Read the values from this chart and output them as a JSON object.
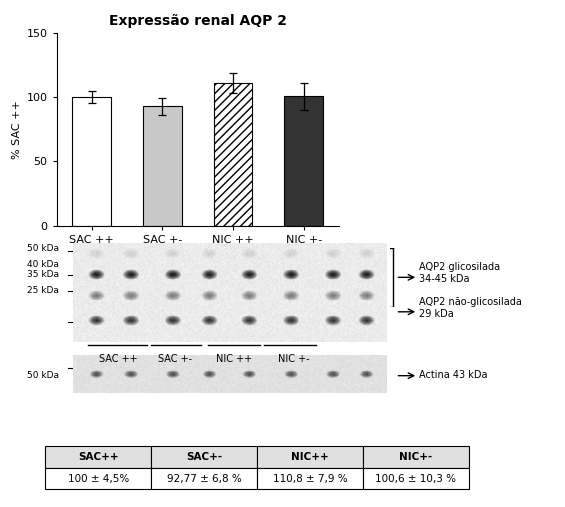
{
  "title": "Expressão renal AQP 2",
  "bar_labels": [
    "SAC ++",
    "SAC +-",
    "NIC ++",
    "NIC +-"
  ],
  "bar_values": [
    100,
    92.77,
    110.8,
    100.6
  ],
  "bar_errors": [
    4.5,
    6.8,
    7.9,
    10.3
  ],
  "bar_colors": [
    "white",
    "#c8c8c8",
    "white",
    "#333333"
  ],
  "bar_edgecolors": [
    "black",
    "black",
    "black",
    "black"
  ],
  "bar_hatches": [
    "",
    "",
    "////",
    ""
  ],
  "ylabel": "% SAC ++",
  "ylim": [
    0,
    150
  ],
  "yticks": [
    0,
    50,
    100,
    150
  ],
  "blot_group_labels": [
    "SAC ++",
    "SAC +-",
    "NIC ++",
    "NIC +-"
  ],
  "annotation1": "AQP2 glicosilada\n34-45 kDa",
  "annotation2": "AQP2 não-glicosilada\n29 kDa",
  "annotation3": "Actina 43 kDa",
  "table_headers": [
    "SAC++",
    "SAC+-",
    "NIC++",
    "NIC+-"
  ],
  "table_values": [
    "100 ± 4,5%",
    "92,77 ± 6,8 %",
    "110,8 ± 7,9 %",
    "100,6 ± 10,3 %"
  ],
  "background_color": "white"
}
